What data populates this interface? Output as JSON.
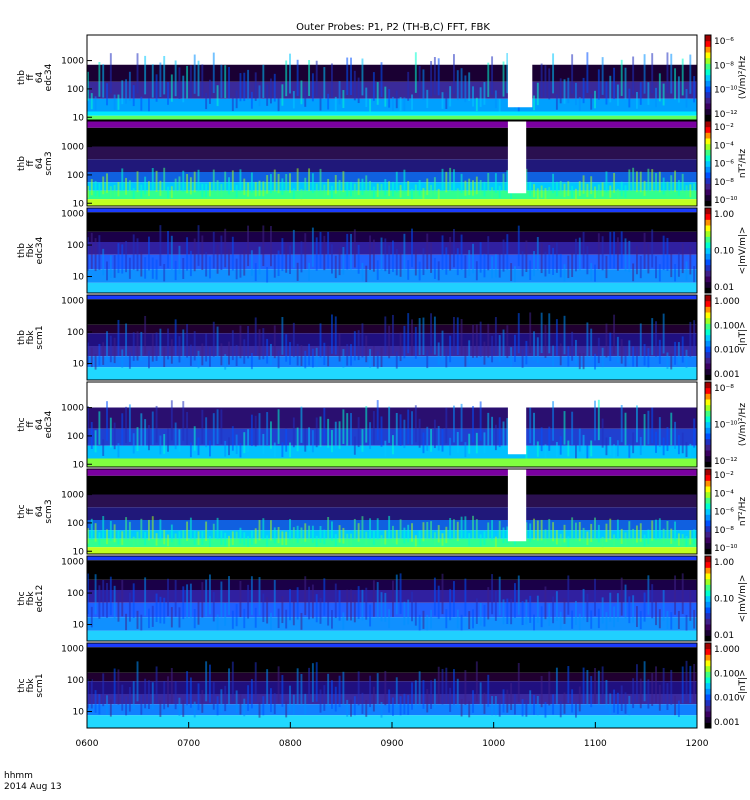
{
  "chart_data": {
    "type": "heatmap",
    "title": "Outer Probes: P1, P2 (TH-B,C) FFT, FBK",
    "footer": [
      "hhmm",
      "2014 Aug 13"
    ],
    "x_ticks": [
      "0600",
      "0700",
      "0800",
      "0900",
      "1000",
      "1100",
      "1200"
    ],
    "x_range": [
      "06:00",
      "12:00"
    ],
    "panels": [
      {
        "label": [
          "thb",
          "ff",
          "64",
          "edc34"
        ],
        "yscale": "log",
        "ylim": [
          8,
          8000
        ],
        "yticks": [
          "10",
          "100",
          "1000"
        ],
        "cbar_label": "(V/m)²/Hz",
        "cbar_ticks": [
          "10⁻⁶",
          "10⁻⁸",
          "10⁻¹⁰",
          "10⁻¹²"
        ],
        "style": "fft_e",
        "gap": [
          0.69,
          0.73
        ]
      },
      {
        "label": [
          "thb",
          "ff",
          "64",
          "scm3"
        ],
        "yscale": "log",
        "ylim": [
          8,
          8000
        ],
        "yticks": [
          "10",
          "100",
          "1000"
        ],
        "cbar_label": "nT²/Hz",
        "cbar_ticks": [
          "10⁻²",
          "10⁻⁴",
          "10⁻⁶",
          "10⁻⁸",
          "10⁻¹⁰"
        ],
        "style": "fft_b",
        "gap": [
          0.69,
          0.72
        ]
      },
      {
        "label": [
          "thb",
          "fbk",
          "edc34"
        ],
        "yscale": "log",
        "ylim": [
          3,
          1500
        ],
        "yticks": [
          "10",
          "100",
          "1000"
        ],
        "cbar_label": "<|mV/m|>",
        "cbar_ticks": [
          "1.00",
          "0.10",
          "0.01"
        ],
        "style": "fbk_e"
      },
      {
        "label": [
          "thb",
          "fbk",
          "scm1"
        ],
        "yscale": "log",
        "ylim": [
          3,
          1500
        ],
        "yticks": [
          "10",
          "100",
          "1000"
        ],
        "cbar_label": "<|nT|>",
        "cbar_ticks": [
          "1.000",
          "0.100",
          "0.010",
          "0.001"
        ],
        "style": "fbk_b"
      },
      {
        "label": [
          "thc",
          "ff",
          "64",
          "edc34"
        ],
        "yscale": "log",
        "ylim": [
          8,
          8000
        ],
        "yticks": [
          "10",
          "100",
          "1000"
        ],
        "cbar_label": "(V/m)²/Hz",
        "cbar_ticks": [
          "10⁻⁸",
          "10⁻¹⁰",
          "10⁻¹²"
        ],
        "style": "fft_e2",
        "gap": [
          0.69,
          0.72
        ]
      },
      {
        "label": [
          "thc",
          "ff",
          "64",
          "scm3"
        ],
        "yscale": "log",
        "ylim": [
          8,
          8000
        ],
        "yticks": [
          "10",
          "100",
          "1000"
        ],
        "cbar_label": "nT²/Hz",
        "cbar_ticks": [
          "10⁻²",
          "10⁻⁴",
          "10⁻⁶",
          "10⁻⁸",
          "10⁻¹⁰"
        ],
        "style": "fft_b",
        "gap": [
          0.69,
          0.72
        ]
      },
      {
        "label": [
          "thc",
          "fbk",
          "edc12"
        ],
        "yscale": "log",
        "ylim": [
          3,
          1500
        ],
        "yticks": [
          "10",
          "100",
          "1000"
        ],
        "cbar_label": "<|mV/m|>",
        "cbar_ticks": [
          "1.00",
          "0.10",
          "0.01"
        ],
        "style": "fbk_e"
      },
      {
        "label": [
          "thc",
          "fbk",
          "scm1"
        ],
        "yscale": "log",
        "ylim": [
          3,
          1500
        ],
        "yticks": [
          "10",
          "100",
          "1000"
        ],
        "cbar_label": "<|nT|>",
        "cbar_ticks": [
          "1.000",
          "0.100",
          "0.010",
          "0.001"
        ],
        "style": "fbk_b"
      }
    ]
  }
}
